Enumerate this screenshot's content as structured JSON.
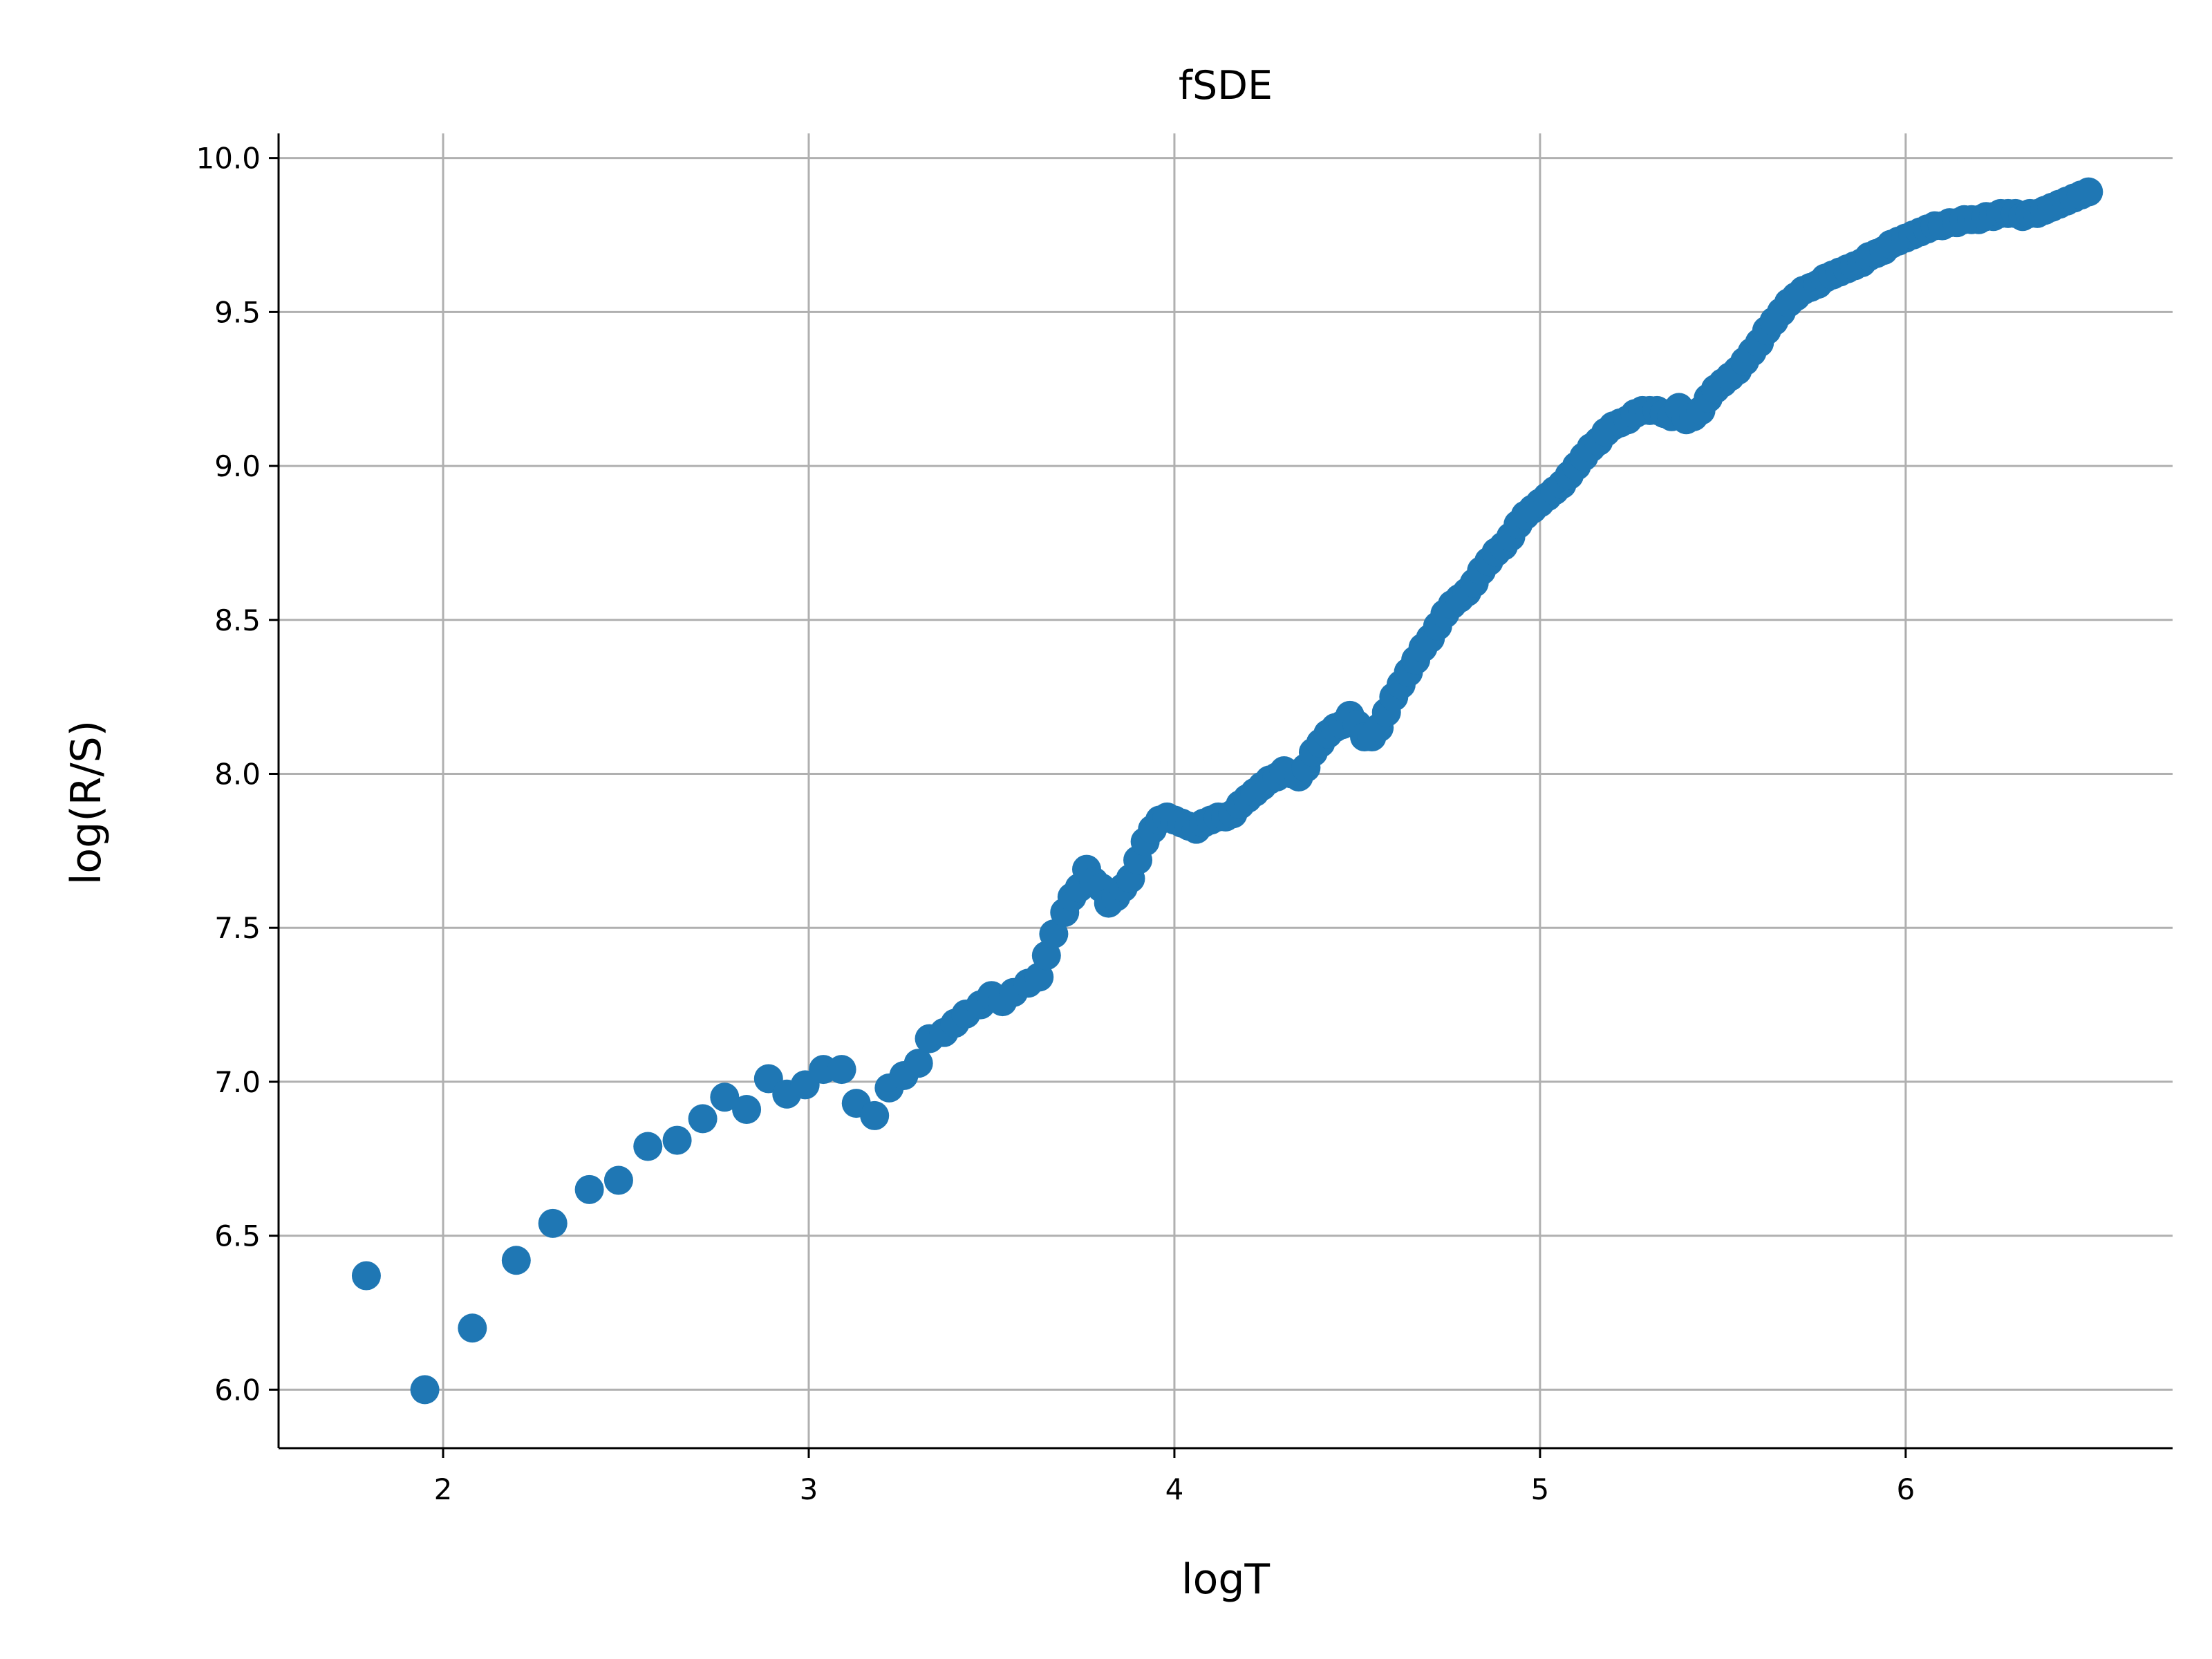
{
  "chart_data": {
    "type": "scatter",
    "title": "fSDE",
    "xlabel": "logT",
    "ylabel": "log(R/S)",
    "xlim": [
      1.55,
      6.73
    ],
    "ylim": [
      5.81,
      10.08
    ],
    "xticks": [
      2,
      3,
      4,
      5,
      6
    ],
    "yticks": [
      6.0,
      6.5,
      7.0,
      7.5,
      8.0,
      8.5,
      9.0,
      9.5,
      10.0
    ],
    "xtick_labels": [
      "2",
      "3",
      "4",
      "5",
      "6"
    ],
    "ytick_labels": [
      "6.0",
      "6.5",
      "7.0",
      "7.5",
      "8.0",
      "8.5",
      "9.0",
      "9.5",
      "10.0"
    ],
    "grid": true,
    "marker_color": "#1f77b4",
    "series": [
      {
        "points": [
          [
            1.79,
            6.37
          ],
          [
            1.95,
            6.0
          ],
          [
            2.08,
            6.2
          ],
          [
            2.2,
            6.42
          ],
          [
            2.3,
            6.54
          ],
          [
            2.4,
            6.65
          ],
          [
            2.48,
            6.68
          ],
          [
            2.56,
            6.79
          ],
          [
            2.64,
            6.81
          ],
          [
            2.71,
            6.88
          ],
          [
            2.77,
            6.95
          ],
          [
            2.83,
            6.91
          ],
          [
            2.89,
            7.01
          ],
          [
            2.94,
            6.96
          ],
          [
            2.99,
            6.99
          ],
          [
            3.04,
            7.04
          ],
          [
            3.09,
            7.04
          ],
          [
            3.13,
            6.93
          ],
          [
            3.18,
            6.89
          ],
          [
            3.22,
            6.98
          ],
          [
            3.26,
            7.02
          ],
          [
            3.3,
            7.06
          ],
          [
            3.33,
            7.14
          ],
          [
            3.37,
            7.16
          ],
          [
            3.4,
            7.19
          ],
          [
            3.43,
            7.22
          ],
          [
            3.47,
            7.25
          ],
          [
            3.5,
            7.28
          ],
          [
            3.53,
            7.26
          ],
          [
            3.56,
            7.29
          ],
          [
            3.6,
            7.32
          ],
          [
            3.63,
            7.34
          ],
          [
            3.65,
            7.41
          ],
          [
            3.67,
            7.48
          ],
          [
            3.7,
            7.55
          ],
          [
            3.72,
            7.6
          ],
          [
            3.74,
            7.63
          ],
          [
            3.76,
            7.69
          ],
          [
            3.78,
            7.65
          ],
          [
            3.8,
            7.63
          ],
          [
            3.82,
            7.58
          ],
          [
            3.84,
            7.6
          ],
          [
            3.86,
            7.63
          ],
          [
            3.88,
            7.66
          ],
          [
            3.9,
            7.72
          ],
          [
            3.92,
            7.78
          ],
          [
            3.94,
            7.82
          ],
          [
            3.96,
            7.85
          ],
          [
            3.98,
            7.86
          ],
          [
            4.0,
            7.85
          ],
          [
            4.02,
            7.84
          ],
          [
            4.04,
            7.83
          ],
          [
            4.06,
            7.82
          ],
          [
            4.08,
            7.84
          ],
          [
            4.1,
            7.85
          ],
          [
            4.12,
            7.86
          ],
          [
            4.14,
            7.86
          ],
          [
            4.16,
            7.87
          ],
          [
            4.18,
            7.9
          ],
          [
            4.2,
            7.92
          ],
          [
            4.22,
            7.94
          ],
          [
            4.24,
            7.96
          ],
          [
            4.26,
            7.98
          ],
          [
            4.28,
            7.99
          ],
          [
            4.3,
            8.01
          ],
          [
            4.32,
            8.0
          ],
          [
            4.34,
            7.99
          ],
          [
            4.36,
            8.02
          ],
          [
            4.38,
            8.07
          ],
          [
            4.4,
            8.1
          ],
          [
            4.42,
            8.13
          ],
          [
            4.44,
            8.15
          ],
          [
            4.46,
            8.16
          ],
          [
            4.48,
            8.19
          ],
          [
            4.5,
            8.16
          ],
          [
            4.52,
            8.12
          ],
          [
            4.54,
            8.12
          ],
          [
            4.56,
            8.15
          ],
          [
            4.58,
            8.2
          ],
          [
            4.6,
            8.25
          ],
          [
            4.62,
            8.29
          ],
          [
            4.64,
            8.33
          ],
          [
            4.66,
            8.37
          ],
          [
            4.68,
            8.41
          ],
          [
            4.7,
            8.44
          ],
          [
            4.72,
            8.48
          ],
          [
            4.74,
            8.52
          ],
          [
            4.76,
            8.55
          ],
          [
            4.78,
            8.57
          ],
          [
            4.8,
            8.59
          ],
          [
            4.82,
            8.62
          ],
          [
            4.84,
            8.66
          ],
          [
            4.86,
            8.69
          ],
          [
            4.88,
            8.72
          ],
          [
            4.9,
            8.74
          ],
          [
            4.92,
            8.77
          ],
          [
            4.94,
            8.81
          ],
          [
            4.96,
            8.84
          ],
          [
            4.98,
            8.86
          ],
          [
            5.0,
            8.88
          ],
          [
            5.02,
            8.9
          ],
          [
            5.04,
            8.92
          ],
          [
            5.06,
            8.94
          ],
          [
            5.08,
            8.97
          ],
          [
            5.1,
            9.0
          ],
          [
            5.12,
            9.03
          ],
          [
            5.14,
            9.06
          ],
          [
            5.16,
            9.08
          ],
          [
            5.18,
            9.11
          ],
          [
            5.2,
            9.13
          ],
          [
            5.22,
            9.14
          ],
          [
            5.24,
            9.15
          ],
          [
            5.26,
            9.17
          ],
          [
            5.28,
            9.18
          ],
          [
            5.3,
            9.18
          ],
          [
            5.32,
            9.18
          ],
          [
            5.34,
            9.17
          ],
          [
            5.36,
            9.16
          ],
          [
            5.38,
            9.19
          ],
          [
            5.4,
            9.15
          ],
          [
            5.42,
            9.16
          ],
          [
            5.44,
            9.18
          ],
          [
            5.46,
            9.22
          ],
          [
            5.48,
            9.25
          ],
          [
            5.5,
            9.27
          ],
          [
            5.52,
            9.29
          ],
          [
            5.54,
            9.31
          ],
          [
            5.56,
            9.34
          ],
          [
            5.58,
            9.37
          ],
          [
            5.6,
            9.4
          ],
          [
            5.62,
            9.44
          ],
          [
            5.64,
            9.47
          ],
          [
            5.66,
            9.5
          ],
          [
            5.68,
            9.53
          ],
          [
            5.7,
            9.55
          ],
          [
            5.72,
            9.57
          ],
          [
            5.74,
            9.58
          ],
          [
            5.76,
            9.59
          ],
          [
            5.78,
            9.61
          ],
          [
            5.8,
            9.62
          ],
          [
            5.82,
            9.63
          ],
          [
            5.84,
            9.64
          ],
          [
            5.86,
            9.65
          ],
          [
            5.88,
            9.66
          ],
          [
            5.9,
            9.68
          ],
          [
            5.92,
            9.69
          ],
          [
            5.94,
            9.7
          ],
          [
            5.96,
            9.72
          ],
          [
            5.98,
            9.73
          ],
          [
            6.0,
            9.74
          ],
          [
            6.02,
            9.75
          ],
          [
            6.04,
            9.76
          ],
          [
            6.06,
            9.77
          ],
          [
            6.08,
            9.78
          ],
          [
            6.1,
            9.78
          ],
          [
            6.12,
            9.79
          ],
          [
            6.14,
            9.79
          ],
          [
            6.16,
            9.8
          ],
          [
            6.18,
            9.8
          ],
          [
            6.2,
            9.8
          ],
          [
            6.22,
            9.81
          ],
          [
            6.24,
            9.81
          ],
          [
            6.26,
            9.82
          ],
          [
            6.28,
            9.82
          ],
          [
            6.3,
            9.82
          ],
          [
            6.32,
            9.81
          ],
          [
            6.34,
            9.82
          ],
          [
            6.36,
            9.82
          ],
          [
            6.38,
            9.83
          ],
          [
            6.4,
            9.84
          ],
          [
            6.42,
            9.85
          ],
          [
            6.44,
            9.86
          ],
          [
            6.46,
            9.87
          ],
          [
            6.48,
            9.88
          ],
          [
            6.5,
            9.89
          ]
        ]
      }
    ]
  }
}
